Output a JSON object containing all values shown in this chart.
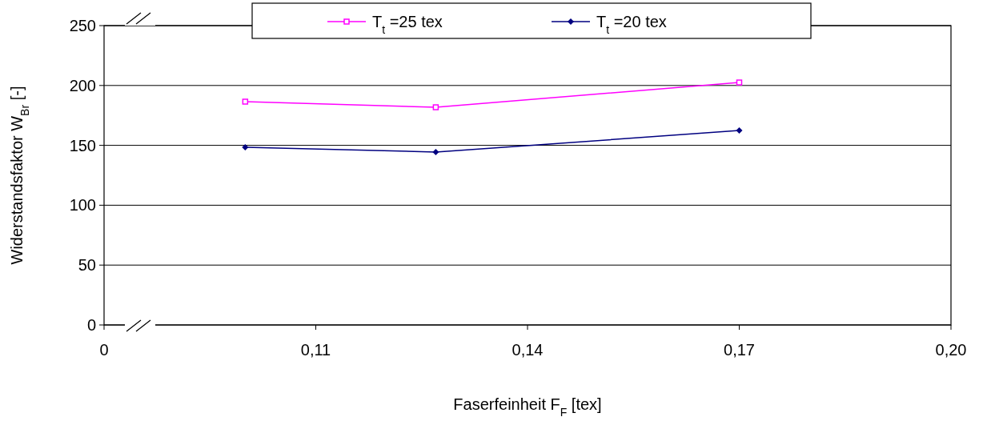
{
  "chart_data": {
    "type": "line",
    "xlabel": "Faserfeinheit F$_{F}$ [tex]",
    "ylabel": "Widerstandsfaktor W$_{Br}$ [-]",
    "xlim": [
      0.08,
      0.2
    ],
    "xticks": [
      {
        "value": 0.08,
        "label": "0"
      },
      {
        "value": 0.11,
        "label": "0,11"
      },
      {
        "value": 0.14,
        "label": "0,14"
      },
      {
        "value": 0.17,
        "label": "0,17"
      },
      {
        "value": 0.2,
        "label": "0,20"
      }
    ],
    "ylim": [
      0,
      250
    ],
    "yticks": [
      0,
      50,
      100,
      150,
      200,
      250
    ],
    "grid": "y",
    "legend": "top",
    "series": [
      {
        "name": "T$_{t}$ =25 tex",
        "color": "#ff00ff",
        "marker": "square",
        "x": [
          0.1,
          0.127,
          0.17
        ],
        "values": [
          186.5,
          181.8,
          202.5
        ]
      },
      {
        "name": "T$_{t}$ =20 tex",
        "color": "#000080",
        "marker": "diamond",
        "x": [
          0.1,
          0.127,
          0.17
        ],
        "values": [
          148.4,
          144.4,
          162.4
        ]
      }
    ]
  }
}
